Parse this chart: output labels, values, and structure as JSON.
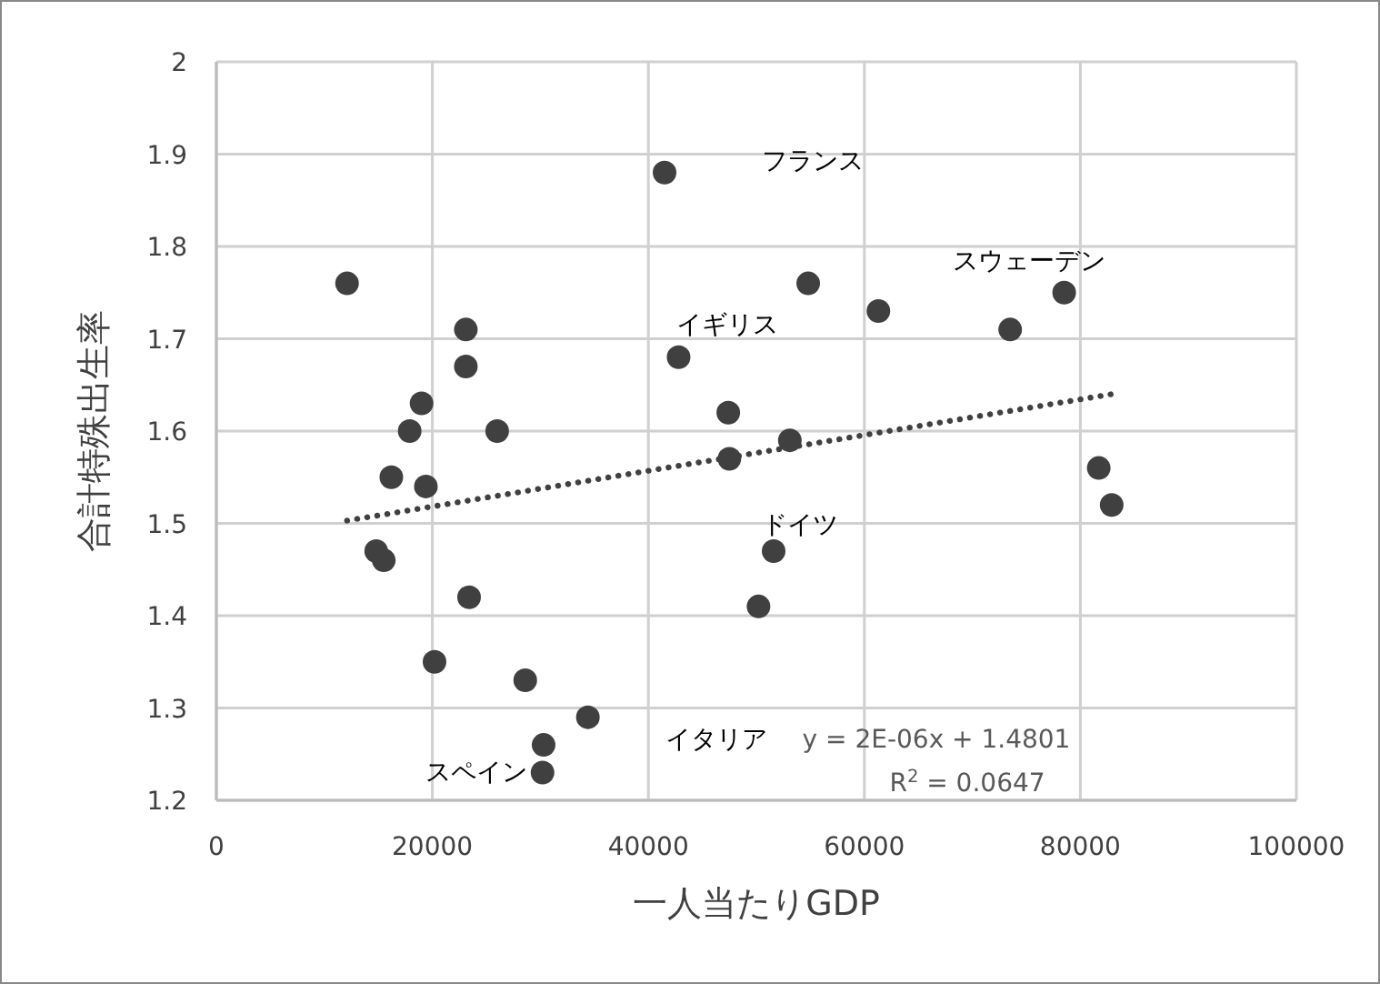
{
  "chart_data": {
    "type": "scatter",
    "xlabel": "一人当たりGDP",
    "ylabel": "合計特殊出生率",
    "xlim": [
      0,
      100000
    ],
    "xticks": [
      0,
      20000,
      40000,
      60000,
      80000,
      100000
    ],
    "ylim": [
      1.2,
      2
    ],
    "yticks": [
      1.2,
      1.3,
      1.4,
      1.5,
      1.6,
      1.7,
      1.8,
      1.9,
      2
    ],
    "grid": true,
    "marker": "circle",
    "series": [
      {
        "color": "#404040",
        "x": [
          12100,
          23100,
          23100,
          19000,
          17900,
          26000,
          16200,
          19400,
          14800,
          15500,
          23400,
          20200,
          28600,
          34400,
          30300,
          30200,
          41500,
          54800,
          61300,
          73500,
          78500,
          42800,
          47400,
          47500,
          53100,
          51600,
          50200,
          81700,
          82900
        ],
        "values": [
          1.76,
          1.71,
          1.67,
          1.63,
          1.6,
          1.6,
          1.55,
          1.54,
          1.47,
          1.46,
          1.42,
          1.35,
          1.33,
          1.29,
          1.26,
          1.23,
          1.88,
          1.76,
          1.73,
          1.71,
          1.75,
          1.68,
          1.62,
          1.57,
          1.59,
          1.47,
          1.41,
          1.56,
          1.52
        ]
      },
      {
        "type": "line",
        "color": "#404040",
        "line_style": "dotted",
        "marker": "none",
        "x": [
          12100,
          82900
        ],
        "values": [
          1.503,
          1.64
        ]
      }
    ],
    "annotations": [
      "フランス",
      "スウェーデン",
      "イギリス",
      "ドイツ",
      "イタリア",
      "スペイン",
      "y = 2E-06x + 1.4801",
      "R$^{2}$ = 0.0647"
    ]
  }
}
